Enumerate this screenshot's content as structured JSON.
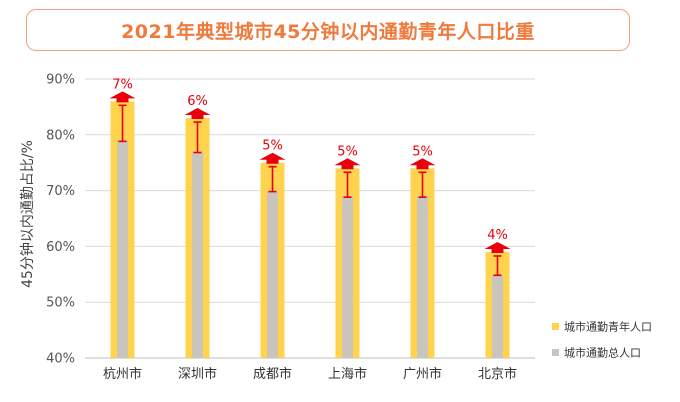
{
  "chart_data": {
    "type": "bar",
    "title": "2021年典型城市45分钟以内通勤青年人口比重",
    "ylabel": "45分钟以内通勤占比/%",
    "ylim": [
      40,
      90
    ],
    "yticks": [
      "40%",
      "50%",
      "60%",
      "70%",
      "80%",
      "90%"
    ],
    "categories": [
      "杭州市",
      "深圳市",
      "成都市",
      "上海市",
      "广州市",
      "北京市"
    ],
    "series": [
      {
        "name": "城市通勤青年人口",
        "color": "#ffd34e",
        "values": [
          86,
          83,
          75,
          74,
          74,
          59
        ]
      },
      {
        "name": "城市通勤总人口",
        "color": "#c9c4bc",
        "values": [
          79,
          77,
          70,
          69,
          69,
          55
        ]
      }
    ],
    "difference_labels": [
      "7%",
      "6%",
      "5%",
      "5%",
      "5%",
      "4%"
    ],
    "arrow_color": "#e8000b",
    "legend_position": "bottom-right",
    "grid": true
  }
}
